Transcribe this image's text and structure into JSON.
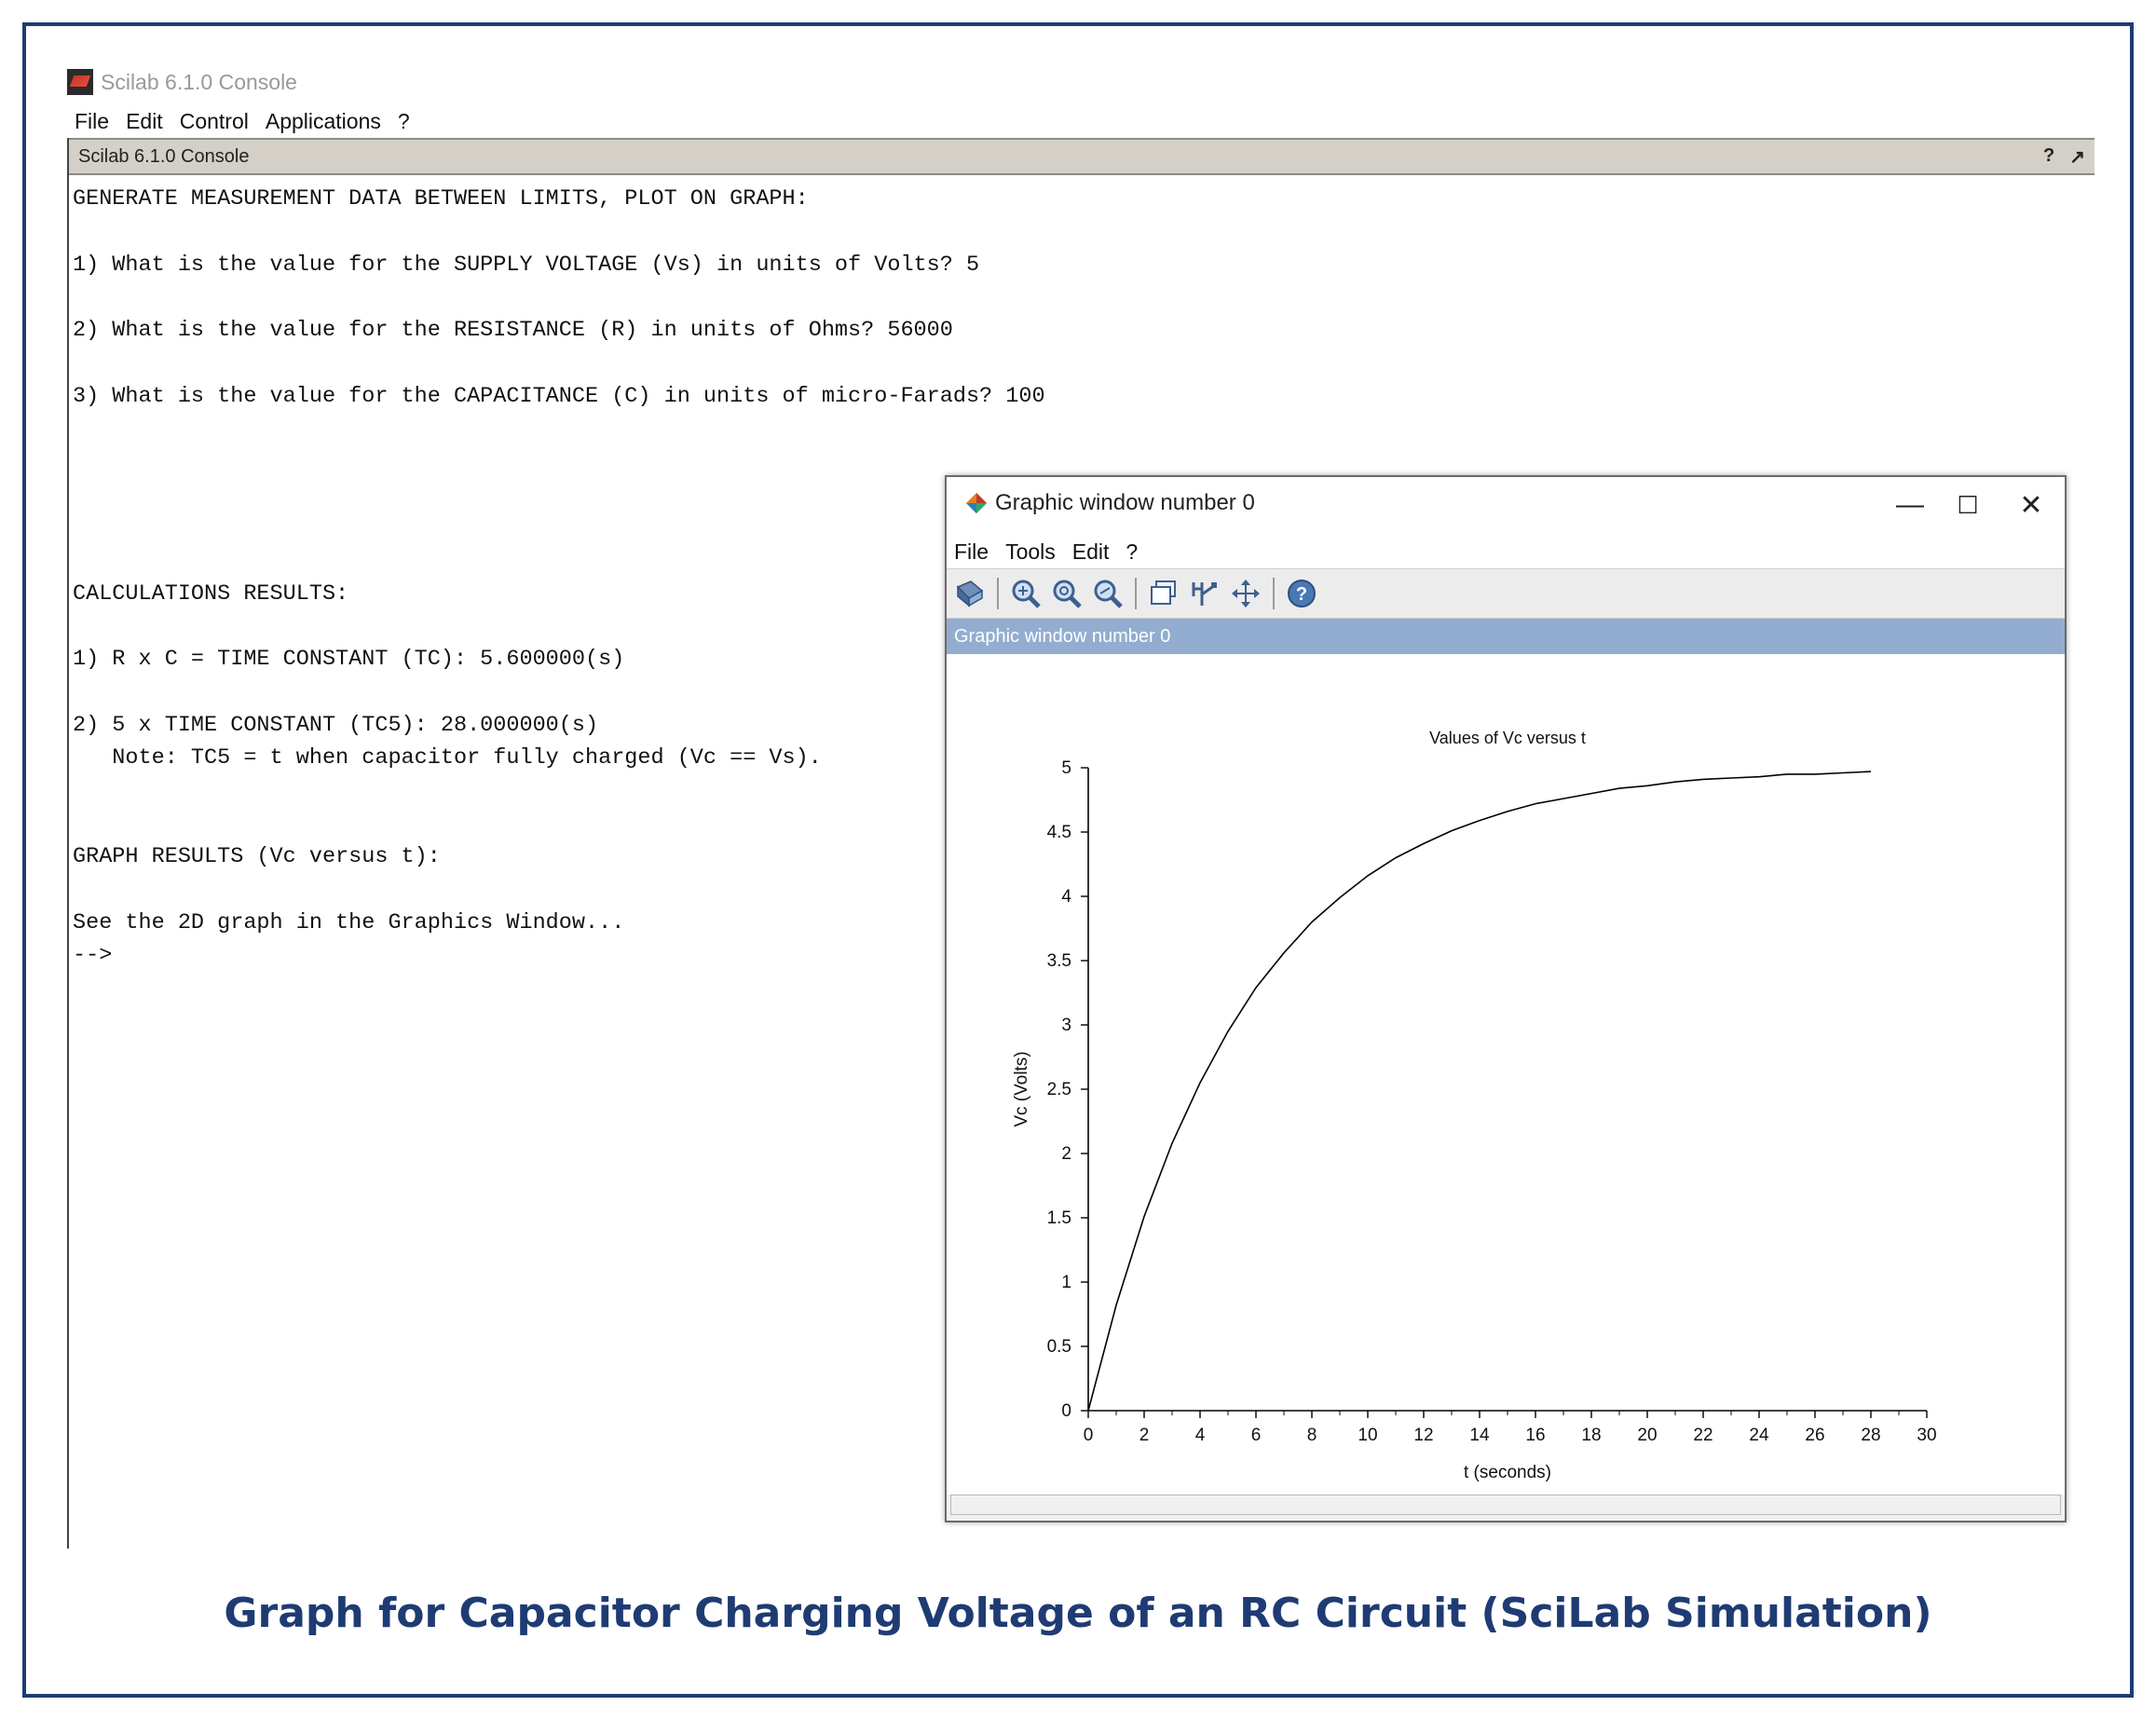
{
  "console": {
    "window_title": "Scilab 6.1.0 Console",
    "menu": [
      "File",
      "Edit",
      "Control",
      "Applications",
      "?"
    ],
    "dock_title": "Scilab 6.1.0 Console",
    "dock_icons": [
      "?",
      "↗"
    ],
    "lines": [
      "GENERATE MEASUREMENT DATA BETWEEN LIMITS, PLOT ON GRAPH:",
      "",
      "1) What is the value for the SUPPLY VOLTAGE (Vs) in units of Volts? 5",
      "",
      "2) What is the value for the RESISTANCE (R) in units of Ohms? 56000",
      "",
      "3) What is the value for the CAPACITANCE (C) in units of micro-Farads? 100",
      "",
      "",
      "",
      "",
      "",
      "CALCULATIONS RESULTS:",
      "",
      "1) R x C = TIME CONSTANT (TC): 5.600000(s)",
      "",
      "2) 5 x TIME CONSTANT (TC5): 28.000000(s)",
      "   Note: TC5 = t when capacitor fully charged (Vc == Vs).",
      "",
      "",
      "GRAPH RESULTS (Vc versus t):",
      "",
      "See the 2D graph in the Graphics Window...",
      "-->"
    ]
  },
  "graphic_window": {
    "title": "Graphic window number 0",
    "menu": [
      "File",
      "Tools",
      "Edit",
      "?"
    ],
    "subheader": "Graphic window number 0",
    "controls": {
      "minimize": "—",
      "maximize": "☐",
      "close": "✕"
    },
    "toolbar_icons": [
      "rotate-icon",
      "zoom-in-icon",
      "zoom-reset-icon",
      "zoom-area-icon",
      "datatip-icon",
      "edit-axes-icon",
      "pan-icon",
      "help-icon"
    ]
  },
  "chart_data": {
    "type": "line",
    "title": "Values of Vc versus t",
    "xlabel": "t (seconds)",
    "ylabel": "Vc (Volts)",
    "xlim": [
      0,
      30
    ],
    "ylim": [
      0,
      5
    ],
    "x_ticks": [
      0,
      2,
      4,
      6,
      8,
      10,
      12,
      14,
      16,
      18,
      20,
      22,
      24,
      26,
      28,
      30
    ],
    "y_ticks": [
      0,
      0.5,
      1,
      1.5,
      2,
      2.5,
      3,
      3.5,
      4,
      4.5,
      5
    ],
    "series": [
      {
        "x": [
          0,
          1,
          2,
          3,
          4,
          5,
          6,
          7,
          8,
          9,
          10,
          11,
          12,
          13,
          14,
          15,
          16,
          17,
          18,
          19,
          20,
          21,
          22,
          23,
          24,
          25,
          26,
          27,
          28
        ],
        "values": [
          0,
          0.82,
          1.51,
          2.08,
          2.55,
          2.95,
          3.29,
          3.56,
          3.8,
          3.99,
          4.16,
          4.3,
          4.41,
          4.51,
          4.59,
          4.66,
          4.72,
          4.76,
          4.8,
          4.84,
          4.86,
          4.89,
          4.91,
          4.92,
          4.93,
          4.95,
          4.95,
          4.96,
          4.97
        ]
      }
    ],
    "grid": false
  },
  "caption": "Graph for Capacitor Charging Voltage of an RC Circuit (SciLab Simulation)"
}
